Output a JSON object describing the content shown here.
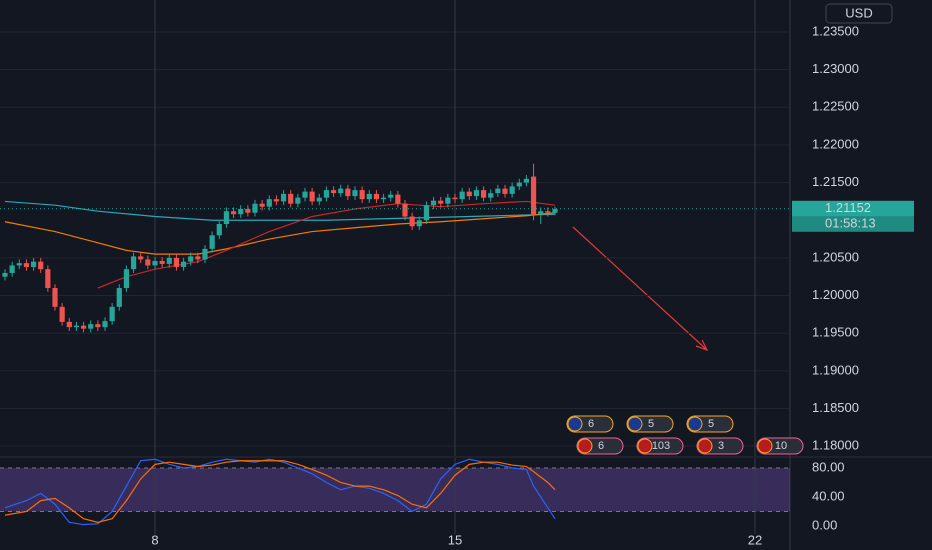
{
  "chart_data": [
    {
      "type": "candlestick",
      "currency": "USD",
      "last_price": 1.21152,
      "countdown": "01:58:13",
      "up_color": "#26a69a",
      "down_color": "#ef5350",
      "grid": true,
      "xlim": [
        -0.7,
        109.9
      ],
      "xticks": [
        {
          "value": 21,
          "label": "8"
        },
        {
          "value": 63,
          "label": "15"
        },
        {
          "value": 105,
          "label": "22"
        }
      ],
      "ylim": [
        1.17869,
        1.23925
      ],
      "yticks": [
        {
          "value": 1.235,
          "label": "1.23500"
        },
        {
          "value": 1.23,
          "label": "1.23000"
        },
        {
          "value": 1.225,
          "label": "1.22500"
        },
        {
          "value": 1.22,
          "label": "1.22000"
        },
        {
          "value": 1.215,
          "label": "1.21500"
        },
        {
          "value": 1.205,
          "label": "1.20500"
        },
        {
          "value": 1.2,
          "label": "1.20000"
        },
        {
          "value": 1.195,
          "label": "1.19500"
        },
        {
          "value": 1.19,
          "label": "1.19000"
        },
        {
          "value": 1.185,
          "label": "1.18500"
        },
        {
          "value": 1.18,
          "label": "1.18000"
        }
      ],
      "x": [
        0,
        1,
        2,
        3,
        4,
        5,
        6,
        7,
        8,
        9,
        10,
        11,
        12,
        13,
        14,
        15,
        16,
        17,
        18,
        19,
        20,
        21,
        22,
        23,
        24,
        25,
        26,
        27,
        28,
        29,
        30,
        31,
        32,
        33,
        34,
        35,
        36,
        37,
        38,
        39,
        40,
        41,
        42,
        43,
        44,
        45,
        46,
        47,
        48,
        49,
        50,
        51,
        52,
        53,
        54,
        55,
        56,
        57,
        58,
        59,
        60,
        61,
        62,
        63,
        64,
        65,
        66,
        67,
        68,
        69,
        70,
        71,
        72,
        73,
        74,
        75,
        76,
        77
      ],
      "open": [
        1.2025,
        1.203,
        1.204,
        1.2043,
        1.2038,
        1.2045,
        1.2035,
        1.201,
        1.1985,
        1.1965,
        1.1958,
        1.196,
        1.1956,
        1.1962,
        1.1958,
        1.1966,
        1.1985,
        1.201,
        1.2035,
        1.2052,
        1.2048,
        1.204,
        1.2046,
        1.2042,
        1.205,
        1.2038,
        1.2045,
        1.2052,
        1.2048,
        1.2062,
        1.208,
        1.2095,
        1.2112,
        1.2108,
        1.2115,
        1.211,
        1.2122,
        1.2118,
        1.2128,
        1.2125,
        1.2135,
        1.2122,
        1.213,
        1.2138,
        1.2125,
        1.213,
        1.214,
        1.2136,
        1.2142,
        1.2132,
        1.214,
        1.2128,
        1.2135,
        1.2128,
        1.213,
        1.2134,
        1.2122,
        1.2105,
        1.2092,
        1.21,
        1.212,
        1.2126,
        1.2122,
        1.213,
        1.2128,
        1.2138,
        1.2132,
        1.214,
        1.213,
        1.2136,
        1.2142,
        1.2135,
        1.2145,
        1.215,
        1.2158,
        1.2108,
        1.2112,
        1.211
      ],
      "high": [
        1.2035,
        1.2045,
        1.2048,
        1.2048,
        1.205,
        1.205,
        1.204,
        1.2015,
        1.199,
        1.197,
        1.1965,
        1.1965,
        1.1967,
        1.1967,
        1.1971,
        1.199,
        1.2015,
        1.204,
        1.2057,
        1.2057,
        1.2053,
        1.2051,
        1.2051,
        1.2055,
        1.2055,
        1.205,
        1.2057,
        1.2057,
        1.2067,
        1.2085,
        1.21,
        1.2117,
        1.2117,
        1.212,
        1.212,
        1.2127,
        1.2127,
        1.2133,
        1.2133,
        1.214,
        1.214,
        1.2135,
        1.2143,
        1.2143,
        1.2135,
        1.2145,
        1.2145,
        1.2147,
        1.2147,
        1.2145,
        1.2145,
        1.214,
        1.214,
        1.2135,
        1.2139,
        1.2139,
        1.2127,
        1.211,
        1.2105,
        1.2125,
        1.2131,
        1.2131,
        1.2135,
        1.2135,
        1.2143,
        1.2143,
        1.2145,
        1.2145,
        1.2141,
        1.2147,
        1.2147,
        1.215,
        1.2155,
        1.216,
        1.2175,
        1.2117,
        1.2117,
        1.2118
      ],
      "low": [
        1.202,
        1.2025,
        1.2035,
        1.2033,
        1.2033,
        1.203,
        1.2005,
        1.198,
        1.196,
        1.1953,
        1.1953,
        1.1951,
        1.1951,
        1.1953,
        1.1953,
        1.1961,
        1.198,
        1.2005,
        1.203,
        1.2043,
        1.2035,
        1.2035,
        1.2037,
        1.2037,
        1.2033,
        1.2033,
        1.204,
        1.2043,
        1.2043,
        1.2057,
        1.2075,
        1.209,
        1.2103,
        1.2103,
        1.2105,
        1.2105,
        1.2113,
        1.2113,
        1.212,
        1.212,
        1.2117,
        1.2117,
        1.2125,
        1.212,
        1.212,
        1.2125,
        1.2131,
        1.2131,
        1.2127,
        1.2127,
        1.2123,
        1.2123,
        1.2123,
        1.2123,
        1.2125,
        1.2117,
        1.21,
        1.2087,
        1.2087,
        1.2095,
        1.2115,
        1.2117,
        1.2117,
        1.2123,
        1.2123,
        1.2127,
        1.2127,
        1.2125,
        1.2125,
        1.2131,
        1.213,
        1.213,
        1.214,
        1.2145,
        1.21,
        1.2095,
        1.2105,
        1.2107
      ],
      "close": [
        1.203,
        1.204,
        1.2043,
        1.2038,
        1.2045,
        1.2035,
        1.201,
        1.1985,
        1.1965,
        1.1958,
        1.196,
        1.1956,
        1.1962,
        1.1958,
        1.1966,
        1.1985,
        1.201,
        1.2035,
        1.2052,
        1.2048,
        1.204,
        1.2046,
        1.2042,
        1.205,
        1.2038,
        1.2045,
        1.2052,
        1.2048,
        1.2062,
        1.208,
        1.2095,
        1.2112,
        1.2108,
        1.2115,
        1.211,
        1.2122,
        1.2118,
        1.2128,
        1.2125,
        1.2135,
        1.2122,
        1.213,
        1.2138,
        1.2125,
        1.213,
        1.214,
        1.2136,
        1.2142,
        1.2132,
        1.214,
        1.2128,
        1.2135,
        1.2128,
        1.213,
        1.2134,
        1.2122,
        1.2105,
        1.2092,
        1.21,
        1.212,
        1.2126,
        1.2122,
        1.213,
        1.2128,
        1.2138,
        1.2132,
        1.214,
        1.213,
        1.2136,
        1.2142,
        1.2135,
        1.2145,
        1.215,
        1.2155,
        1.2108,
        1.2112,
        1.211,
        1.2115
      ],
      "series": [
        {
          "color": "#26a9b8",
          "x": [
            0,
            7,
            13,
            21,
            29,
            37,
            45,
            53,
            61,
            69,
            77
          ],
          "values": [
            1.2125,
            1.212,
            1.2112,
            1.2105,
            1.21,
            1.21,
            1.21,
            1.2102,
            1.2104,
            1.2106,
            1.2108
          ]
        },
        {
          "color": "#f57c00",
          "x": [
            0,
            7,
            13,
            17,
            21,
            27,
            31,
            37,
            43,
            49,
            55,
            61,
            67,
            73,
            77
          ],
          "values": [
            1.2098,
            1.2085,
            1.207,
            1.206,
            1.2055,
            1.2055,
            1.2062,
            1.2075,
            1.2085,
            1.209,
            1.2095,
            1.2098,
            1.2102,
            1.2106,
            1.211
          ]
        },
        {
          "color": "#c62828",
          "x": [
            13,
            17,
            21,
            27,
            31,
            37,
            43,
            49,
            55,
            61,
            67,
            73,
            77
          ],
          "values": [
            1.201,
            1.2025,
            1.2035,
            1.2045,
            1.206,
            1.2085,
            1.2105,
            1.2115,
            1.2122,
            1.2118,
            1.2122,
            1.2125,
            1.212
          ]
        }
      ],
      "events": [
        "6",
        "5",
        "5",
        "6",
        "103",
        "3",
        "10"
      ]
    },
    {
      "type": "line",
      "ylim": [
        -8.3,
        91
      ],
      "band": [
        20,
        80
      ],
      "yticks": [
        {
          "value": 80,
          "label": "80.00"
        },
        {
          "value": 40,
          "label": "40.00"
        },
        {
          "value": 0,
          "label": "0.00"
        }
      ],
      "series": [
        {
          "color": "#2962ff",
          "x": [
            0,
            3,
            5,
            7,
            9,
            11,
            13,
            15,
            17,
            19,
            21,
            23,
            25,
            27,
            29,
            31,
            33,
            35,
            37,
            39,
            41,
            43,
            45,
            47,
            49,
            51,
            53,
            55,
            57,
            59,
            61,
            63,
            65,
            67,
            69,
            71,
            73,
            74,
            76,
            77
          ],
          "values": [
            25,
            35,
            45,
            30,
            5,
            2,
            3,
            20,
            55,
            90,
            92,
            85,
            80,
            82,
            88,
            92,
            90,
            88,
            92,
            88,
            80,
            72,
            60,
            50,
            55,
            52,
            45,
            35,
            20,
            30,
            65,
            85,
            92,
            88,
            85,
            80,
            78,
            55,
            25,
            10
          ]
        },
        {
          "color": "#ff6d00",
          "x": [
            0,
            3,
            5,
            7,
            9,
            11,
            13,
            15,
            17,
            19,
            21,
            23,
            25,
            27,
            29,
            31,
            33,
            35,
            37,
            39,
            41,
            43,
            45,
            47,
            49,
            51,
            53,
            55,
            57,
            59,
            61,
            63,
            65,
            67,
            69,
            71,
            73,
            74,
            76,
            77
          ],
          "values": [
            15,
            20,
            35,
            38,
            25,
            10,
            5,
            10,
            35,
            65,
            85,
            88,
            85,
            82,
            84,
            88,
            90,
            90,
            90,
            90,
            85,
            78,
            70,
            60,
            55,
            55,
            50,
            42,
            30,
            25,
            45,
            70,
            85,
            88,
            88,
            84,
            82,
            75,
            60,
            50
          ]
        }
      ]
    }
  ]
}
